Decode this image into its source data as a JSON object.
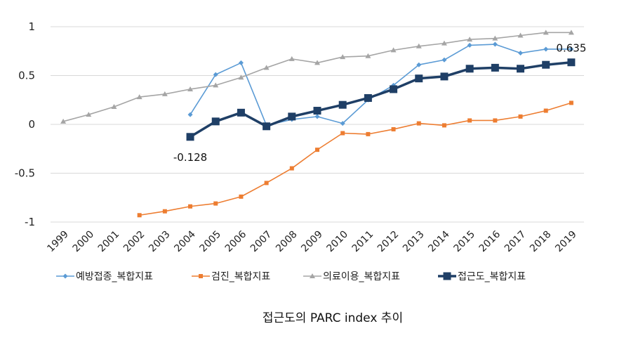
{
  "chart_data": {
    "type": "line",
    "title": "",
    "caption": "접근도의 PARC index 추이",
    "xlabel": "",
    "ylabel": "",
    "ylim": [
      -1,
      1
    ],
    "yticks": [
      "1",
      "0.5",
      "0",
      "-0.5",
      "-1"
    ],
    "grid": true,
    "legend_position": "bottom",
    "categories": [
      "1999",
      "2000",
      "2001",
      "2002",
      "2003",
      "2004",
      "2005",
      "2006",
      "2007",
      "2008",
      "2009",
      "2010",
      "2011",
      "2012",
      "2013",
      "2014",
      "2015",
      "2016",
      "2017",
      "2018",
      "2019"
    ],
    "series": [
      {
        "name": "예방접종_복합지표",
        "color": "#5b9bd5",
        "marker": "diamond",
        "values": [
          null,
          null,
          null,
          null,
          null,
          0.1,
          0.51,
          0.63,
          -0.01,
          0.05,
          0.08,
          0.01,
          0.25,
          0.4,
          0.61,
          0.66,
          0.81,
          0.82,
          0.73,
          0.77,
          0.77
        ]
      },
      {
        "name": "검진_복합지표",
        "color": "#ed7d31",
        "marker": "square-small",
        "values": [
          null,
          null,
          null,
          -0.93,
          -0.89,
          -0.84,
          -0.81,
          -0.74,
          -0.6,
          -0.45,
          -0.26,
          -0.09,
          -0.1,
          -0.05,
          0.01,
          -0.01,
          0.04,
          0.04,
          0.08,
          0.14,
          0.22
        ]
      },
      {
        "name": "의료이용_복합지표",
        "color": "#a5a5a5",
        "marker": "triangle",
        "values": [
          0.03,
          0.1,
          0.18,
          0.28,
          0.31,
          0.36,
          0.4,
          0.48,
          0.58,
          0.67,
          0.63,
          0.69,
          0.7,
          0.76,
          0.8,
          0.83,
          0.87,
          0.88,
          0.91,
          0.94,
          0.94
        ]
      },
      {
        "name": "접근도_복합지표",
        "color": "#1f3f66",
        "marker": "square",
        "values": [
          null,
          null,
          null,
          null,
          null,
          -0.128,
          0.03,
          0.12,
          -0.02,
          0.08,
          0.14,
          0.2,
          0.27,
          0.36,
          0.47,
          0.49,
          0.57,
          0.58,
          0.57,
          0.61,
          0.635
        ]
      }
    ],
    "annotations": [
      {
        "series": "접근도_복합지표",
        "category": "2004",
        "text": "-0.128"
      },
      {
        "series": "접근도_복합지표",
        "category": "2019",
        "text": "0.635"
      }
    ]
  }
}
